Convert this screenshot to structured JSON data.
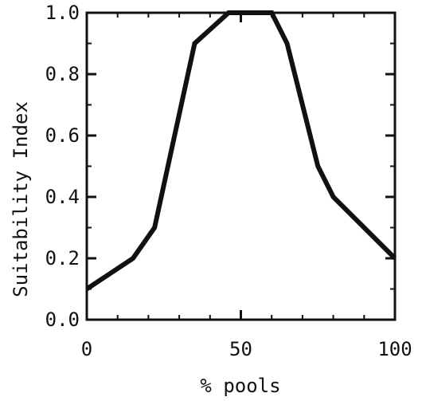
{
  "chart_data": {
    "type": "line",
    "title": "",
    "xlabel": "% pools",
    "ylabel": "Suitability Index",
    "xlim": [
      0,
      100
    ],
    "ylim": [
      0.0,
      1.0
    ],
    "x_ticks": [
      0,
      50,
      100
    ],
    "x_tick_labels": [
      "0",
      "50",
      "100"
    ],
    "y_ticks": [
      0.0,
      0.2,
      0.4,
      0.6,
      0.8,
      1.0
    ],
    "y_tick_labels": [
      "0.0",
      "0.2",
      "0.4",
      "0.6",
      "0.8",
      "1.0"
    ],
    "grid": false,
    "legend": "none",
    "line_color": "#111111",
    "series": [
      {
        "x": [
          0,
          15,
          22,
          35,
          46,
          60,
          65,
          75,
          80,
          100
        ],
        "y": [
          0.1,
          0.2,
          0.3,
          0.9,
          1.0,
          1.0,
          0.9,
          0.5,
          0.4,
          0.2
        ]
      }
    ]
  }
}
